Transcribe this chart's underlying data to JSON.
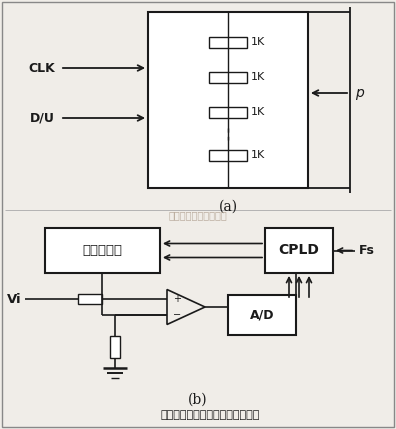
{
  "bg_color": "#f0ede8",
  "title_text": "数字电位器方式增益控制电路框图",
  "watermark": "杭州将导科技有限公司",
  "clk_label": "CLK",
  "du_label": "D/U",
  "p_label": "p",
  "vi_label": "Vi",
  "fs_label": "Fs",
  "box1_label": "数字电位器",
  "cpld_label": "CPLD",
  "ad_label": "A/D",
  "res_labels": [
    "1K",
    "1K",
    "1K",
    "1K"
  ],
  "label_a": "(a)",
  "label_b": "(b)",
  "line_color": "#1a1a1a",
  "text_color": "#1a1a1a",
  "watermark_color": "#b0a090",
  "border_color": "#888888"
}
